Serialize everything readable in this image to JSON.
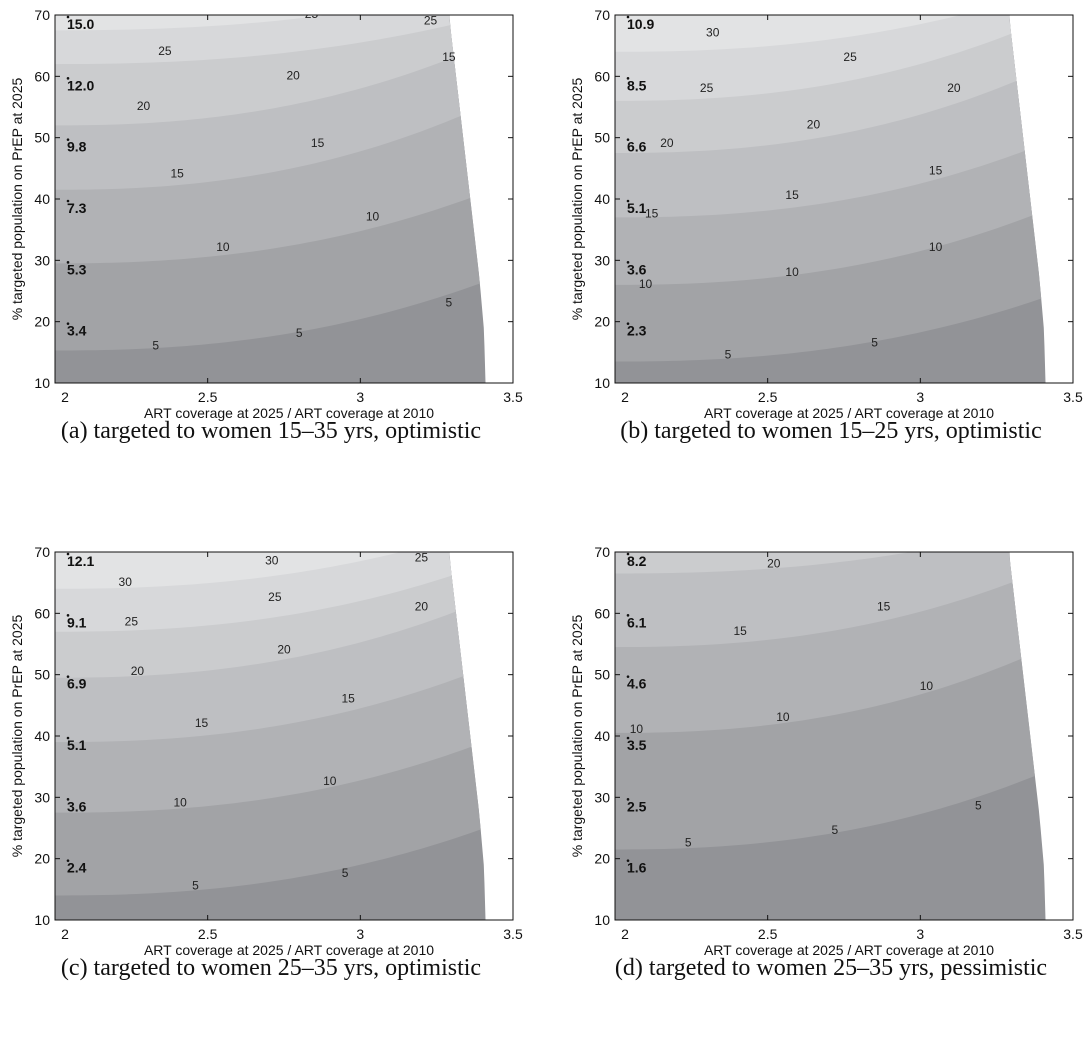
{
  "figure": {
    "panels": [
      {
        "caption": "(a)  targeted to women 15–35 yrs, optimistic",
        "chart_data": {
          "type": "contour",
          "xlabel": "ART coverage at 2025 / ART coverage at 2010",
          "ylabel": "% targeted population on PrEP at 2025",
          "xlim": [
            2,
            3.5
          ],
          "ylim": [
            10,
            70
          ],
          "xticks": [
            "2",
            "2.5",
            "3",
            "3.5"
          ],
          "yticks": [
            "10",
            "20",
            "30",
            "40",
            "50",
            "60",
            "70"
          ],
          "boundary_x": [
            3.41,
            3.405,
            3.39,
            3.37,
            3.35,
            3.33,
            3.31,
            3.29
          ],
          "contours": [
            {
              "level": "5",
              "y_left": 15.3,
              "y_right": 25.5
            },
            {
              "level": "10",
              "y_left": 29.5,
              "y_right": 40
            },
            {
              "level": "15",
              "y_left": 41.5,
              "y_right": 54
            },
            {
              "level": "20",
              "y_left": 52,
              "y_right": 64
            },
            {
              "level": "25",
              "y_left": 62,
              "y_right": 69
            },
            {
              "level": "30",
              "y_left": 67.5,
              "y_right": 74
            }
          ],
          "contour_labels": [
            {
              "text": "5",
              "x": 2.33,
              "y": 16
            },
            {
              "text": "5",
              "x": 2.8,
              "y": 18
            },
            {
              "text": "5",
              "x": 3.29,
              "y": 23
            },
            {
              "text": "10",
              "x": 2.55,
              "y": 32
            },
            {
              "text": "10",
              "x": 3.04,
              "y": 37
            },
            {
              "text": "15",
              "x": 2.4,
              "y": 44
            },
            {
              "text": "15",
              "x": 2.86,
              "y": 49
            },
            {
              "text": "15",
              "x": 3.29,
              "y": 63
            },
            {
              "text": "20",
              "x": 2.29,
              "y": 55
            },
            {
              "text": "20",
              "x": 2.78,
              "y": 60
            },
            {
              "text": "25",
              "x": 2.36,
              "y": 64
            },
            {
              "text": "25",
              "x": 2.84,
              "y": 70
            },
            {
              "text": "25",
              "x": 3.23,
              "y": 69
            }
          ],
          "point_labels": [
            {
              "text": "15.0",
              "y": 70
            },
            {
              "text": "12.0",
              "y": 60
            },
            {
              "text": "9.8",
              "y": 50
            },
            {
              "text": "7.3",
              "y": 40
            },
            {
              "text": "5.3",
              "y": 30
            },
            {
              "text": "3.4",
              "y": 20
            }
          ]
        }
      },
      {
        "caption": "(b)  targeted to women 15–25 yrs, optimistic",
        "chart_data": {
          "type": "contour",
          "xlabel": "ART coverage at 2025 / ART coverage at 2010",
          "ylabel": "% targeted population on PrEP at 2025",
          "xlim": [
            2,
            3.5
          ],
          "ylim": [
            10,
            70
          ],
          "xticks": [
            "2",
            "2.5",
            "3",
            "3.5"
          ],
          "yticks": [
            "10",
            "20",
            "30",
            "40",
            "50",
            "60",
            "70"
          ],
          "boundary_x": [
            3.41,
            3.405,
            3.39,
            3.37,
            3.35,
            3.33,
            3.31,
            3.29
          ],
          "contours": [
            {
              "level": "5",
              "y_left": 13.5,
              "y_right": 23
            },
            {
              "level": "10",
              "y_left": 26,
              "y_right": 37
            },
            {
              "level": "15",
              "y_left": 37,
              "y_right": 48
            },
            {
              "level": "20",
              "y_left": 47.5,
              "y_right": 60
            },
            {
              "level": "25",
              "y_left": 56,
              "y_right": 68
            },
            {
              "level": "30",
              "y_left": 64,
              "y_right": 73
            }
          ],
          "contour_labels": [
            {
              "text": "5",
              "x": 2.37,
              "y": 14.5
            },
            {
              "text": "5",
              "x": 2.85,
              "y": 16.5
            },
            {
              "text": "10",
              "x": 2.1,
              "y": 26
            },
            {
              "text": "10",
              "x": 2.58,
              "y": 28
            },
            {
              "text": "10",
              "x": 3.05,
              "y": 32
            },
            {
              "text": "15",
              "x": 2.12,
              "y": 37.5
            },
            {
              "text": "15",
              "x": 2.58,
              "y": 40.5
            },
            {
              "text": "15",
              "x": 3.05,
              "y": 44.5
            },
            {
              "text": "20",
              "x": 2.17,
              "y": 49
            },
            {
              "text": "20",
              "x": 2.65,
              "y": 52
            },
            {
              "text": "20",
              "x": 3.11,
              "y": 58
            },
            {
              "text": "25",
              "x": 2.3,
              "y": 58
            },
            {
              "text": "25",
              "x": 2.77,
              "y": 63
            },
            {
              "text": "30",
              "x": 2.32,
              "y": 67
            },
            {
              "text": "30",
              "x": 2.8,
              "y": 71
            }
          ],
          "point_labels": [
            {
              "text": "10.9",
              "y": 70
            },
            {
              "text": "8.5",
              "y": 60
            },
            {
              "text": "6.6",
              "y": 50
            },
            {
              "text": "5.1",
              "y": 40
            },
            {
              "text": "3.6",
              "y": 30
            },
            {
              "text": "2.3",
              "y": 20
            }
          ]
        }
      },
      {
        "caption": "(c)  targeted to women 25–35 yrs, optimistic",
        "chart_data": {
          "type": "contour",
          "xlabel": "ART coverage at 2025 / ART coverage at 2010",
          "ylabel": "% targeted population on PrEP at 2025",
          "xlim": [
            2,
            3.5
          ],
          "ylim": [
            10,
            70
          ],
          "xticks": [
            "2",
            "2.5",
            "3",
            "3.5"
          ],
          "yticks": [
            "10",
            "20",
            "30",
            "40",
            "50",
            "60",
            "70"
          ],
          "boundary_x": [
            3.41,
            3.405,
            3.39,
            3.37,
            3.35,
            3.33,
            3.31,
            3.29
          ],
          "contours": [
            {
              "level": "5",
              "y_left": 14,
              "y_right": 24
            },
            {
              "level": "10",
              "y_left": 27.5,
              "y_right": 38
            },
            {
              "level": "15",
              "y_left": 39,
              "y_right": 50
            },
            {
              "level": "20",
              "y_left": 49.5,
              "y_right": 61
            },
            {
              "level": "25",
              "y_left": 57,
              "y_right": 67
            },
            {
              "level": "30",
              "y_left": 64,
              "y_right": 73
            }
          ],
          "contour_labels": [
            {
              "text": "5",
              "x": 2.46,
              "y": 15.5
            },
            {
              "text": "5",
              "x": 2.95,
              "y": 17.5
            },
            {
              "text": "10",
              "x": 2.41,
              "y": 29
            },
            {
              "text": "10",
              "x": 2.9,
              "y": 32.5
            },
            {
              "text": "15",
              "x": 2.48,
              "y": 42
            },
            {
              "text": "15",
              "x": 2.96,
              "y": 46
            },
            {
              "text": "20",
              "x": 2.27,
              "y": 50.5
            },
            {
              "text": "20",
              "x": 2.75,
              "y": 54
            },
            {
              "text": "20",
              "x": 3.2,
              "y": 61
            },
            {
              "text": "25",
              "x": 2.25,
              "y": 58.5
            },
            {
              "text": "25",
              "x": 2.72,
              "y": 62.5
            },
            {
              "text": "25",
              "x": 3.2,
              "y": 69
            },
            {
              "text": "30",
              "x": 2.23,
              "y": 65
            },
            {
              "text": "30",
              "x": 2.71,
              "y": 68.5
            }
          ],
          "point_labels": [
            {
              "text": "12.1",
              "y": 70
            },
            {
              "text": "9.1",
              "y": 60
            },
            {
              "text": "6.9",
              "y": 50
            },
            {
              "text": "5.1",
              "y": 40
            },
            {
              "text": "3.6",
              "y": 30
            },
            {
              "text": "2.4",
              "y": 20
            }
          ]
        }
      },
      {
        "caption": "(d)  targeted to women 25–35 yrs, pessimistic",
        "chart_data": {
          "type": "contour",
          "xlabel": "ART coverage at 2025 / ART coverage at 2010",
          "ylabel": "% targeted population on PrEP at 2025",
          "xlim": [
            2,
            3.5
          ],
          "ylim": [
            10,
            70
          ],
          "xticks": [
            "2",
            "2.5",
            "3",
            "3.5"
          ],
          "yticks": [
            "10",
            "20",
            "30",
            "40",
            "50",
            "60",
            "70"
          ],
          "boundary_x": [
            3.41,
            3.405,
            3.39,
            3.37,
            3.35,
            3.33,
            3.31,
            3.29
          ],
          "contours": [
            {
              "level": "5",
              "y_left": 21.5,
              "y_right": 33
            },
            {
              "level": "10",
              "y_left": 40.5,
              "y_right": 53
            },
            {
              "level": "15",
              "y_left": 54.5,
              "y_right": 66
            },
            {
              "level": "20",
              "y_left": 66.5,
              "y_right": 74
            }
          ],
          "contour_labels": [
            {
              "text": "5",
              "x": 2.24,
              "y": 22.5
            },
            {
              "text": "5",
              "x": 2.72,
              "y": 24.5
            },
            {
              "text": "5",
              "x": 3.19,
              "y": 28.5
            },
            {
              "text": "10",
              "x": 2.07,
              "y": 41
            },
            {
              "text": "10",
              "x": 2.55,
              "y": 43
            },
            {
              "text": "10",
              "x": 3.02,
              "y": 48
            },
            {
              "text": "15",
              "x": 2.41,
              "y": 57
            },
            {
              "text": "15",
              "x": 2.88,
              "y": 61
            },
            {
              "text": "20",
              "x": 2.52,
              "y": 68
            }
          ],
          "point_labels": [
            {
              "text": "8.2",
              "y": 70
            },
            {
              "text": "6.1",
              "y": 60
            },
            {
              "text": "4.6",
              "y": 50
            },
            {
              "text": "3.5",
              "y": 40
            },
            {
              "text": "2.5",
              "y": 30
            },
            {
              "text": "1.6",
              "y": 20
            }
          ]
        }
      }
    ]
  }
}
